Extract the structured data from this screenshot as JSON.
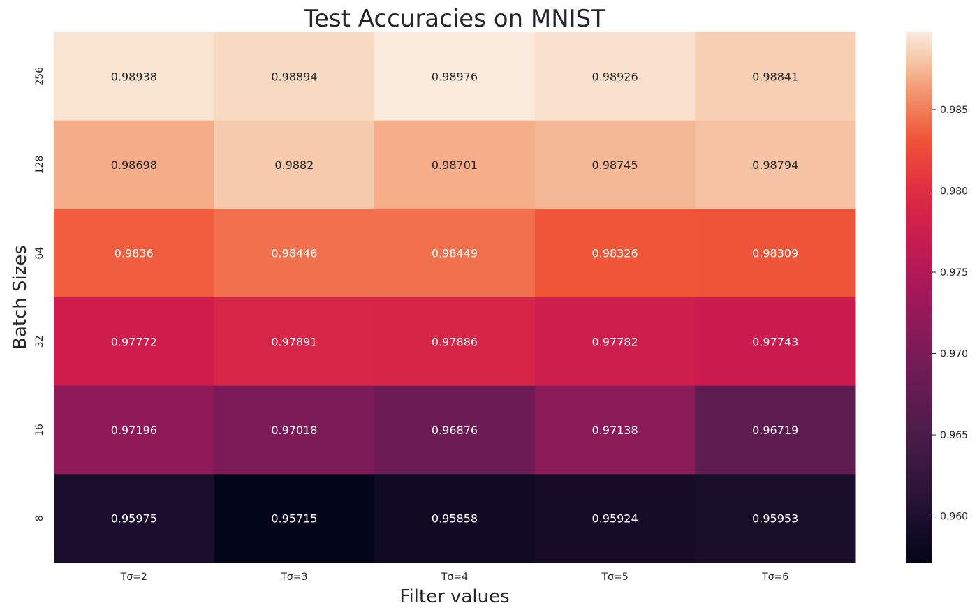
{
  "chart_data": {
    "type": "heatmap",
    "title": "Test Accuracies on MNIST",
    "xlabel": "Filter values",
    "ylabel": "Batch Sizes",
    "x_categories": [
      "Tσ=2",
      "Tσ=3",
      "Tσ=4",
      "Tσ=5",
      "Tσ=6"
    ],
    "y_categories": [
      "256",
      "128",
      "64",
      "32",
      "16",
      "8"
    ],
    "values": [
      [
        0.98938,
        0.98894,
        0.98976,
        0.98926,
        0.98841
      ],
      [
        0.98698,
        0.9882,
        0.98701,
        0.98745,
        0.98794
      ],
      [
        0.9836,
        0.98446,
        0.98449,
        0.98326,
        0.98309
      ],
      [
        0.97772,
        0.97891,
        0.97886,
        0.97782,
        0.97743
      ],
      [
        0.97196,
        0.97018,
        0.96876,
        0.97138,
        0.96719
      ],
      [
        0.95975,
        0.95715,
        0.95858,
        0.95924,
        0.95953
      ]
    ],
    "colorbar": {
      "range": [
        0.95715,
        0.98976
      ],
      "ticks": [
        0.96,
        0.965,
        0.97,
        0.975,
        0.98,
        0.985
      ],
      "tick_labels": [
        "0.960",
        "0.965",
        "0.970",
        "0.975",
        "0.980",
        "0.985"
      ]
    },
    "colormap": "rocket",
    "grid": false,
    "legend": "colorbar-right"
  }
}
